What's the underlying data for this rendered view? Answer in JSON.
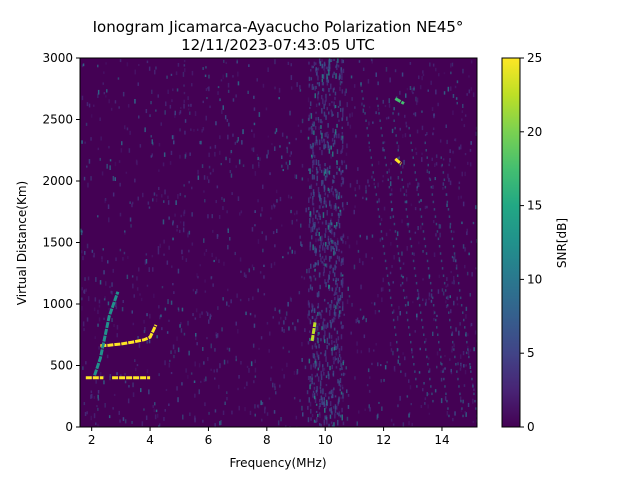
{
  "chart_data": {
    "type": "heatmap",
    "title": "Ionogram Jicamarca-Ayacucho Polarization NE45°",
    "subtitle": "12/11/2023-07:43:05 UTC",
    "xlabel": "Frequency(MHz)",
    "ylabel": "Virtual Distance(Km)",
    "xlim": [
      1.6,
      15.2
    ],
    "ylim": [
      0,
      3000
    ],
    "xticks": [
      2,
      4,
      6,
      8,
      10,
      12,
      14
    ],
    "yticks": [
      0,
      500,
      1000,
      1500,
      2000,
      2500,
      3000
    ],
    "colorbar": {
      "label": "SNR[dB]",
      "range": [
        0,
        25
      ],
      "ticks": [
        0,
        5,
        10,
        15,
        20,
        25
      ],
      "colormap": "viridis"
    },
    "grid": false,
    "traces": [
      {
        "description_kind": "echo",
        "x": [
          1.8,
          2.0,
          2.2,
          2.4
        ],
        "y": [
          400,
          400,
          400,
          400
        ],
        "snr": 25
      },
      {
        "description_kind": "echo",
        "x": [
          2.7,
          3.0,
          3.3,
          3.6,
          4.0
        ],
        "y": [
          400,
          400,
          400,
          400,
          400
        ],
        "snr": 25
      },
      {
        "description_kind": "echo",
        "x": [
          2.3,
          2.6,
          3.0,
          3.4,
          3.8,
          4.0,
          4.1,
          4.2
        ],
        "y": [
          660,
          665,
          675,
          690,
          710,
          730,
          780,
          830
        ],
        "snr": 24
      },
      {
        "description_kind": "echo",
        "x": [
          2.1,
          2.3,
          2.6,
          2.9
        ],
        "y": [
          420,
          560,
          900,
          1100
        ],
        "snr": 12
      },
      {
        "description_kind": "echo",
        "x": [
          9.55,
          9.65
        ],
        "y": [
          700,
          850
        ],
        "snr": 22
      },
      {
        "description_kind": "echo",
        "x": [
          12.4,
          12.6
        ],
        "y": [
          2180,
          2140
        ],
        "snr": 24
      },
      {
        "description_kind": "echo",
        "x": [
          12.4,
          12.7
        ],
        "y": [
          2670,
          2630
        ],
        "snr": 18
      }
    ]
  }
}
